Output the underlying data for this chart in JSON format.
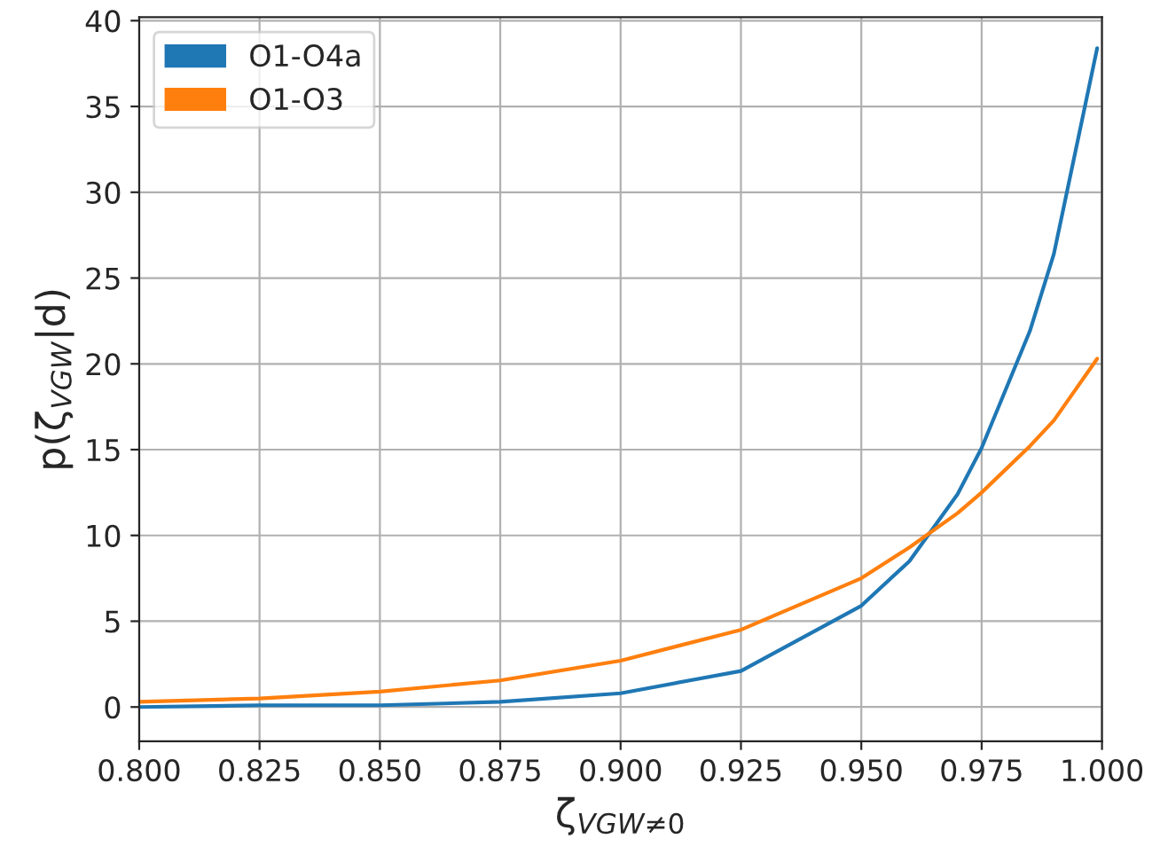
{
  "chart_data": {
    "type": "line",
    "xlabel": "ζ$_{VGW≠0}$",
    "ylabel": "p(ζ$_{VGW}$|d)",
    "x": [
      0.8,
      0.825,
      0.85,
      0.875,
      0.9,
      0.925,
      0.95,
      0.96,
      0.97,
      0.975,
      0.985,
      0.99,
      0.999
    ],
    "series": [
      {
        "name": "O1-O4a",
        "color": "#1f77b4",
        "values": [
          0,
          0.1,
          0.1,
          0.3,
          0.8,
          2.1,
          5.9,
          8.5,
          12.4,
          15.1,
          21.9,
          26.4,
          38.4
        ]
      },
      {
        "name": "O1-O3",
        "color": "#ff7f0e",
        "values": [
          0.3,
          0.5,
          0.9,
          1.55,
          2.7,
          4.5,
          7.5,
          9.3,
          11.3,
          12.5,
          15.2,
          16.7,
          20.3
        ]
      }
    ],
    "xlim": [
      0.8,
      1.0
    ],
    "ylim": [
      -2,
      40.2
    ],
    "xticks": [
      {
        "value": 0.8,
        "label": "0.800"
      },
      {
        "value": 0.825,
        "label": "0.825"
      },
      {
        "value": 0.85,
        "label": "0.850"
      },
      {
        "value": 0.875,
        "label": "0.875"
      },
      {
        "value": 0.9,
        "label": "0.900"
      },
      {
        "value": 0.925,
        "label": "0.925"
      },
      {
        "value": 0.95,
        "label": "0.950"
      },
      {
        "value": 0.975,
        "label": "0.975"
      },
      {
        "value": 1.0,
        "label": "1.000"
      }
    ],
    "yticks": [
      0,
      5,
      10,
      15,
      20,
      25,
      30,
      35,
      40
    ],
    "grid": true,
    "legend": "top left"
  }
}
